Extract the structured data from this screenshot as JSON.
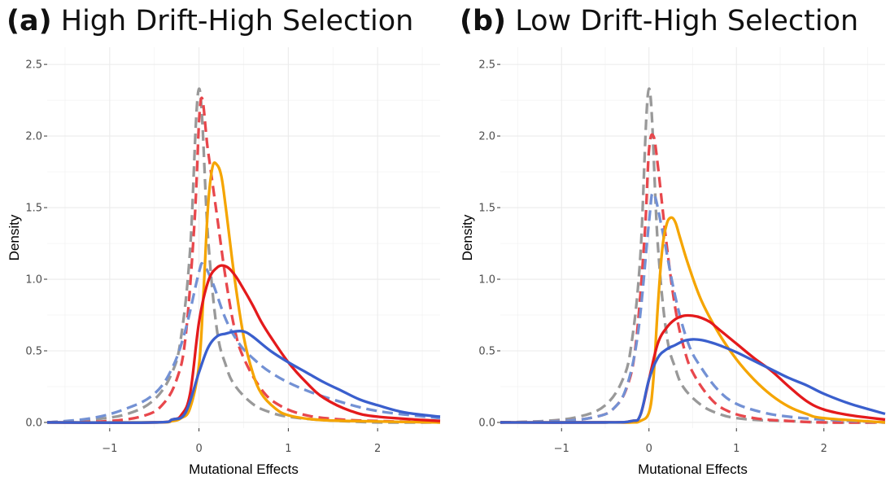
{
  "chart_data": [
    {
      "type": "line",
      "panel_label": "(a)",
      "title": "High Drift-High Selection",
      "xlabel": "Mutational Effects",
      "ylabel": "Density",
      "xlim": [
        -1.7,
        2.7
      ],
      "ylim": [
        -0.04,
        2.62
      ],
      "xticks": [
        -1,
        0,
        1,
        2
      ],
      "xtick_labels": [
        "−1",
        "0",
        "1",
        "2"
      ],
      "yticks": [
        0.0,
        0.5,
        1.0,
        1.5,
        2.0,
        2.5
      ],
      "ytick_labels": [
        "0.0",
        "0.5",
        "1.0",
        "1.5",
        "2.0",
        "2.5"
      ],
      "grid": true,
      "series": [
        {
          "color": "#999999",
          "dash": true,
          "x": [
            -1.7,
            -1.2,
            -0.8,
            -0.5,
            -0.3,
            -0.2,
            -0.1,
            0.0,
            0.1,
            0.2,
            0.3,
            0.4,
            0.6,
            0.8,
            1.0,
            1.3,
            1.6,
            2.0,
            2.7
          ],
          "y": [
            0.0,
            0.02,
            0.06,
            0.16,
            0.35,
            0.6,
            1.2,
            2.33,
            1.3,
            0.65,
            0.4,
            0.26,
            0.13,
            0.07,
            0.04,
            0.02,
            0.01,
            0.0,
            0.0
          ]
        },
        {
          "color": "#E8474C",
          "dash": true,
          "x": [
            -1.7,
            -1.0,
            -0.6,
            -0.4,
            -0.25,
            -0.15,
            -0.05,
            0.02,
            0.1,
            0.2,
            0.3,
            0.4,
            0.5,
            0.7,
            0.9,
            1.2,
            1.6,
            2.0,
            2.7
          ],
          "y": [
            0.0,
            0.01,
            0.05,
            0.13,
            0.3,
            0.6,
            1.4,
            2.25,
            1.9,
            1.45,
            1.0,
            0.65,
            0.45,
            0.23,
            0.12,
            0.05,
            0.02,
            0.01,
            0.0
          ]
        },
        {
          "color": "#7391D4",
          "dash": true,
          "x": [
            -1.7,
            -1.2,
            -0.8,
            -0.5,
            -0.3,
            -0.15,
            0.0,
            0.05,
            0.15,
            0.3,
            0.45,
            0.6,
            0.8,
            1.1,
            1.5,
            2.0,
            2.7
          ],
          "y": [
            0.0,
            0.03,
            0.1,
            0.2,
            0.38,
            0.65,
            1.05,
            1.1,
            0.98,
            0.72,
            0.55,
            0.45,
            0.35,
            0.25,
            0.16,
            0.08,
            0.03
          ]
        },
        {
          "color": "#F5A500",
          "dash": false,
          "x": [
            -1.7,
            -0.5,
            -0.3,
            -0.2,
            -0.1,
            0.0,
            0.05,
            0.1,
            0.15,
            0.2,
            0.25,
            0.3,
            0.4,
            0.5,
            0.6,
            0.7,
            0.85,
            1.0,
            1.3,
            1.7,
            2.7
          ],
          "y": [
            0.0,
            0.0,
            0.01,
            0.03,
            0.1,
            0.4,
            0.9,
            1.5,
            1.78,
            1.8,
            1.72,
            1.5,
            1.0,
            0.6,
            0.35,
            0.2,
            0.1,
            0.05,
            0.02,
            0.01,
            0.0
          ]
        },
        {
          "color": "#E41A1C",
          "dash": false,
          "x": [
            -1.7,
            -0.5,
            -0.3,
            -0.2,
            -0.1,
            0.0,
            0.1,
            0.2,
            0.3,
            0.4,
            0.5,
            0.6,
            0.7,
            0.8,
            1.0,
            1.2,
            1.4,
            1.7,
            2.0,
            2.7
          ],
          "y": [
            0.0,
            0.0,
            0.02,
            0.05,
            0.2,
            0.7,
            0.98,
            1.08,
            1.09,
            1.03,
            0.93,
            0.82,
            0.7,
            0.6,
            0.42,
            0.28,
            0.17,
            0.08,
            0.04,
            0.01
          ]
        },
        {
          "color": "#3A5FCD",
          "dash": false,
          "x": [
            -1.7,
            -0.5,
            -0.3,
            -0.15,
            0.0,
            0.1,
            0.2,
            0.3,
            0.4,
            0.5,
            0.6,
            0.8,
            1.0,
            1.2,
            1.4,
            1.6,
            1.8,
            2.0,
            2.3,
            2.7
          ],
          "y": [
            0.0,
            0.0,
            0.02,
            0.07,
            0.35,
            0.52,
            0.6,
            0.62,
            0.635,
            0.635,
            0.6,
            0.5,
            0.42,
            0.35,
            0.28,
            0.22,
            0.16,
            0.12,
            0.07,
            0.04
          ]
        }
      ]
    },
    {
      "type": "line",
      "panel_label": "(b)",
      "title": "Low Drift-High Selection",
      "xlabel": "Mutational Effects",
      "ylabel": "Density",
      "xlim": [
        -1.7,
        2.7
      ],
      "ylim": [
        -0.04,
        2.62
      ],
      "xticks": [
        -1,
        0,
        1,
        2
      ],
      "xtick_labels": [
        "−1",
        "0",
        "1",
        "2"
      ],
      "yticks": [
        0.0,
        0.5,
        1.0,
        1.5,
        2.0,
        2.5
      ],
      "ytick_labels": [
        "0.0",
        "0.5",
        "1.0",
        "1.5",
        "2.0",
        "2.5"
      ],
      "grid": true,
      "series": [
        {
          "color": "#999999",
          "dash": true,
          "x": [
            -1.7,
            -1.2,
            -0.8,
            -0.5,
            -0.3,
            -0.2,
            -0.1,
            0.0,
            0.1,
            0.2,
            0.3,
            0.4,
            0.6,
            0.8,
            1.0,
            1.3,
            1.6,
            2.0,
            2.7
          ],
          "y": [
            0.0,
            0.01,
            0.04,
            0.12,
            0.3,
            0.55,
            1.15,
            2.33,
            1.25,
            0.62,
            0.38,
            0.24,
            0.12,
            0.06,
            0.03,
            0.015,
            0.01,
            0.0,
            0.0
          ]
        },
        {
          "color": "#E8474C",
          "dash": true,
          "x": [
            -1.7,
            -1.0,
            -0.6,
            -0.4,
            -0.25,
            -0.15,
            -0.05,
            0.0,
            0.05,
            0.1,
            0.2,
            0.3,
            0.4,
            0.5,
            0.7,
            0.9,
            1.2,
            1.6,
            2.0,
            2.7
          ],
          "y": [
            0.0,
            0.01,
            0.04,
            0.1,
            0.25,
            0.55,
            1.3,
            1.9,
            2.0,
            1.8,
            1.25,
            0.8,
            0.52,
            0.35,
            0.17,
            0.08,
            0.03,
            0.01,
            0.0,
            0.0
          ]
        },
        {
          "color": "#7391D4",
          "dash": true,
          "x": [
            -1.7,
            -1.0,
            -0.6,
            -0.4,
            -0.25,
            -0.12,
            0.0,
            0.05,
            0.15,
            0.3,
            0.45,
            0.6,
            0.8,
            1.0,
            1.3,
            1.6,
            2.0,
            2.7
          ],
          "y": [
            0.0,
            0.01,
            0.04,
            0.1,
            0.26,
            0.65,
            1.4,
            1.6,
            1.35,
            0.88,
            0.55,
            0.38,
            0.22,
            0.13,
            0.07,
            0.04,
            0.02,
            0.0
          ]
        },
        {
          "color": "#F5A500",
          "dash": false,
          "x": [
            -1.7,
            -0.5,
            -0.2,
            -0.1,
            0.0,
            0.05,
            0.1,
            0.15,
            0.2,
            0.25,
            0.3,
            0.35,
            0.45,
            0.6,
            0.8,
            1.0,
            1.2,
            1.4,
            1.6,
            1.8,
            2.0,
            2.7
          ],
          "y": [
            0.0,
            0.0,
            0.0,
            0.01,
            0.07,
            0.3,
            0.8,
            1.2,
            1.38,
            1.43,
            1.4,
            1.3,
            1.1,
            0.85,
            0.62,
            0.44,
            0.3,
            0.19,
            0.11,
            0.06,
            0.03,
            0.0
          ]
        },
        {
          "color": "#E41A1C",
          "dash": false,
          "x": [
            -1.7,
            -0.5,
            -0.2,
            -0.1,
            0.0,
            0.1,
            0.2,
            0.3,
            0.4,
            0.5,
            0.6,
            0.7,
            0.8,
            1.0,
            1.2,
            1.4,
            1.6,
            1.8,
            2.0,
            2.3,
            2.7
          ],
          "y": [
            0.0,
            0.0,
            0.01,
            0.05,
            0.3,
            0.55,
            0.66,
            0.72,
            0.745,
            0.745,
            0.73,
            0.7,
            0.65,
            0.55,
            0.45,
            0.36,
            0.25,
            0.15,
            0.09,
            0.05,
            0.02
          ]
        },
        {
          "color": "#3A5FCD",
          "dash": false,
          "x": [
            -1.7,
            -0.5,
            -0.2,
            -0.1,
            0.0,
            0.1,
            0.2,
            0.3,
            0.4,
            0.5,
            0.6,
            0.7,
            0.8,
            1.0,
            1.2,
            1.4,
            1.6,
            1.8,
            2.0,
            2.3,
            2.7
          ],
          "y": [
            0.0,
            0.0,
            0.01,
            0.05,
            0.3,
            0.45,
            0.51,
            0.54,
            0.57,
            0.58,
            0.575,
            0.56,
            0.54,
            0.49,
            0.43,
            0.37,
            0.31,
            0.26,
            0.2,
            0.13,
            0.06
          ]
        }
      ]
    }
  ]
}
